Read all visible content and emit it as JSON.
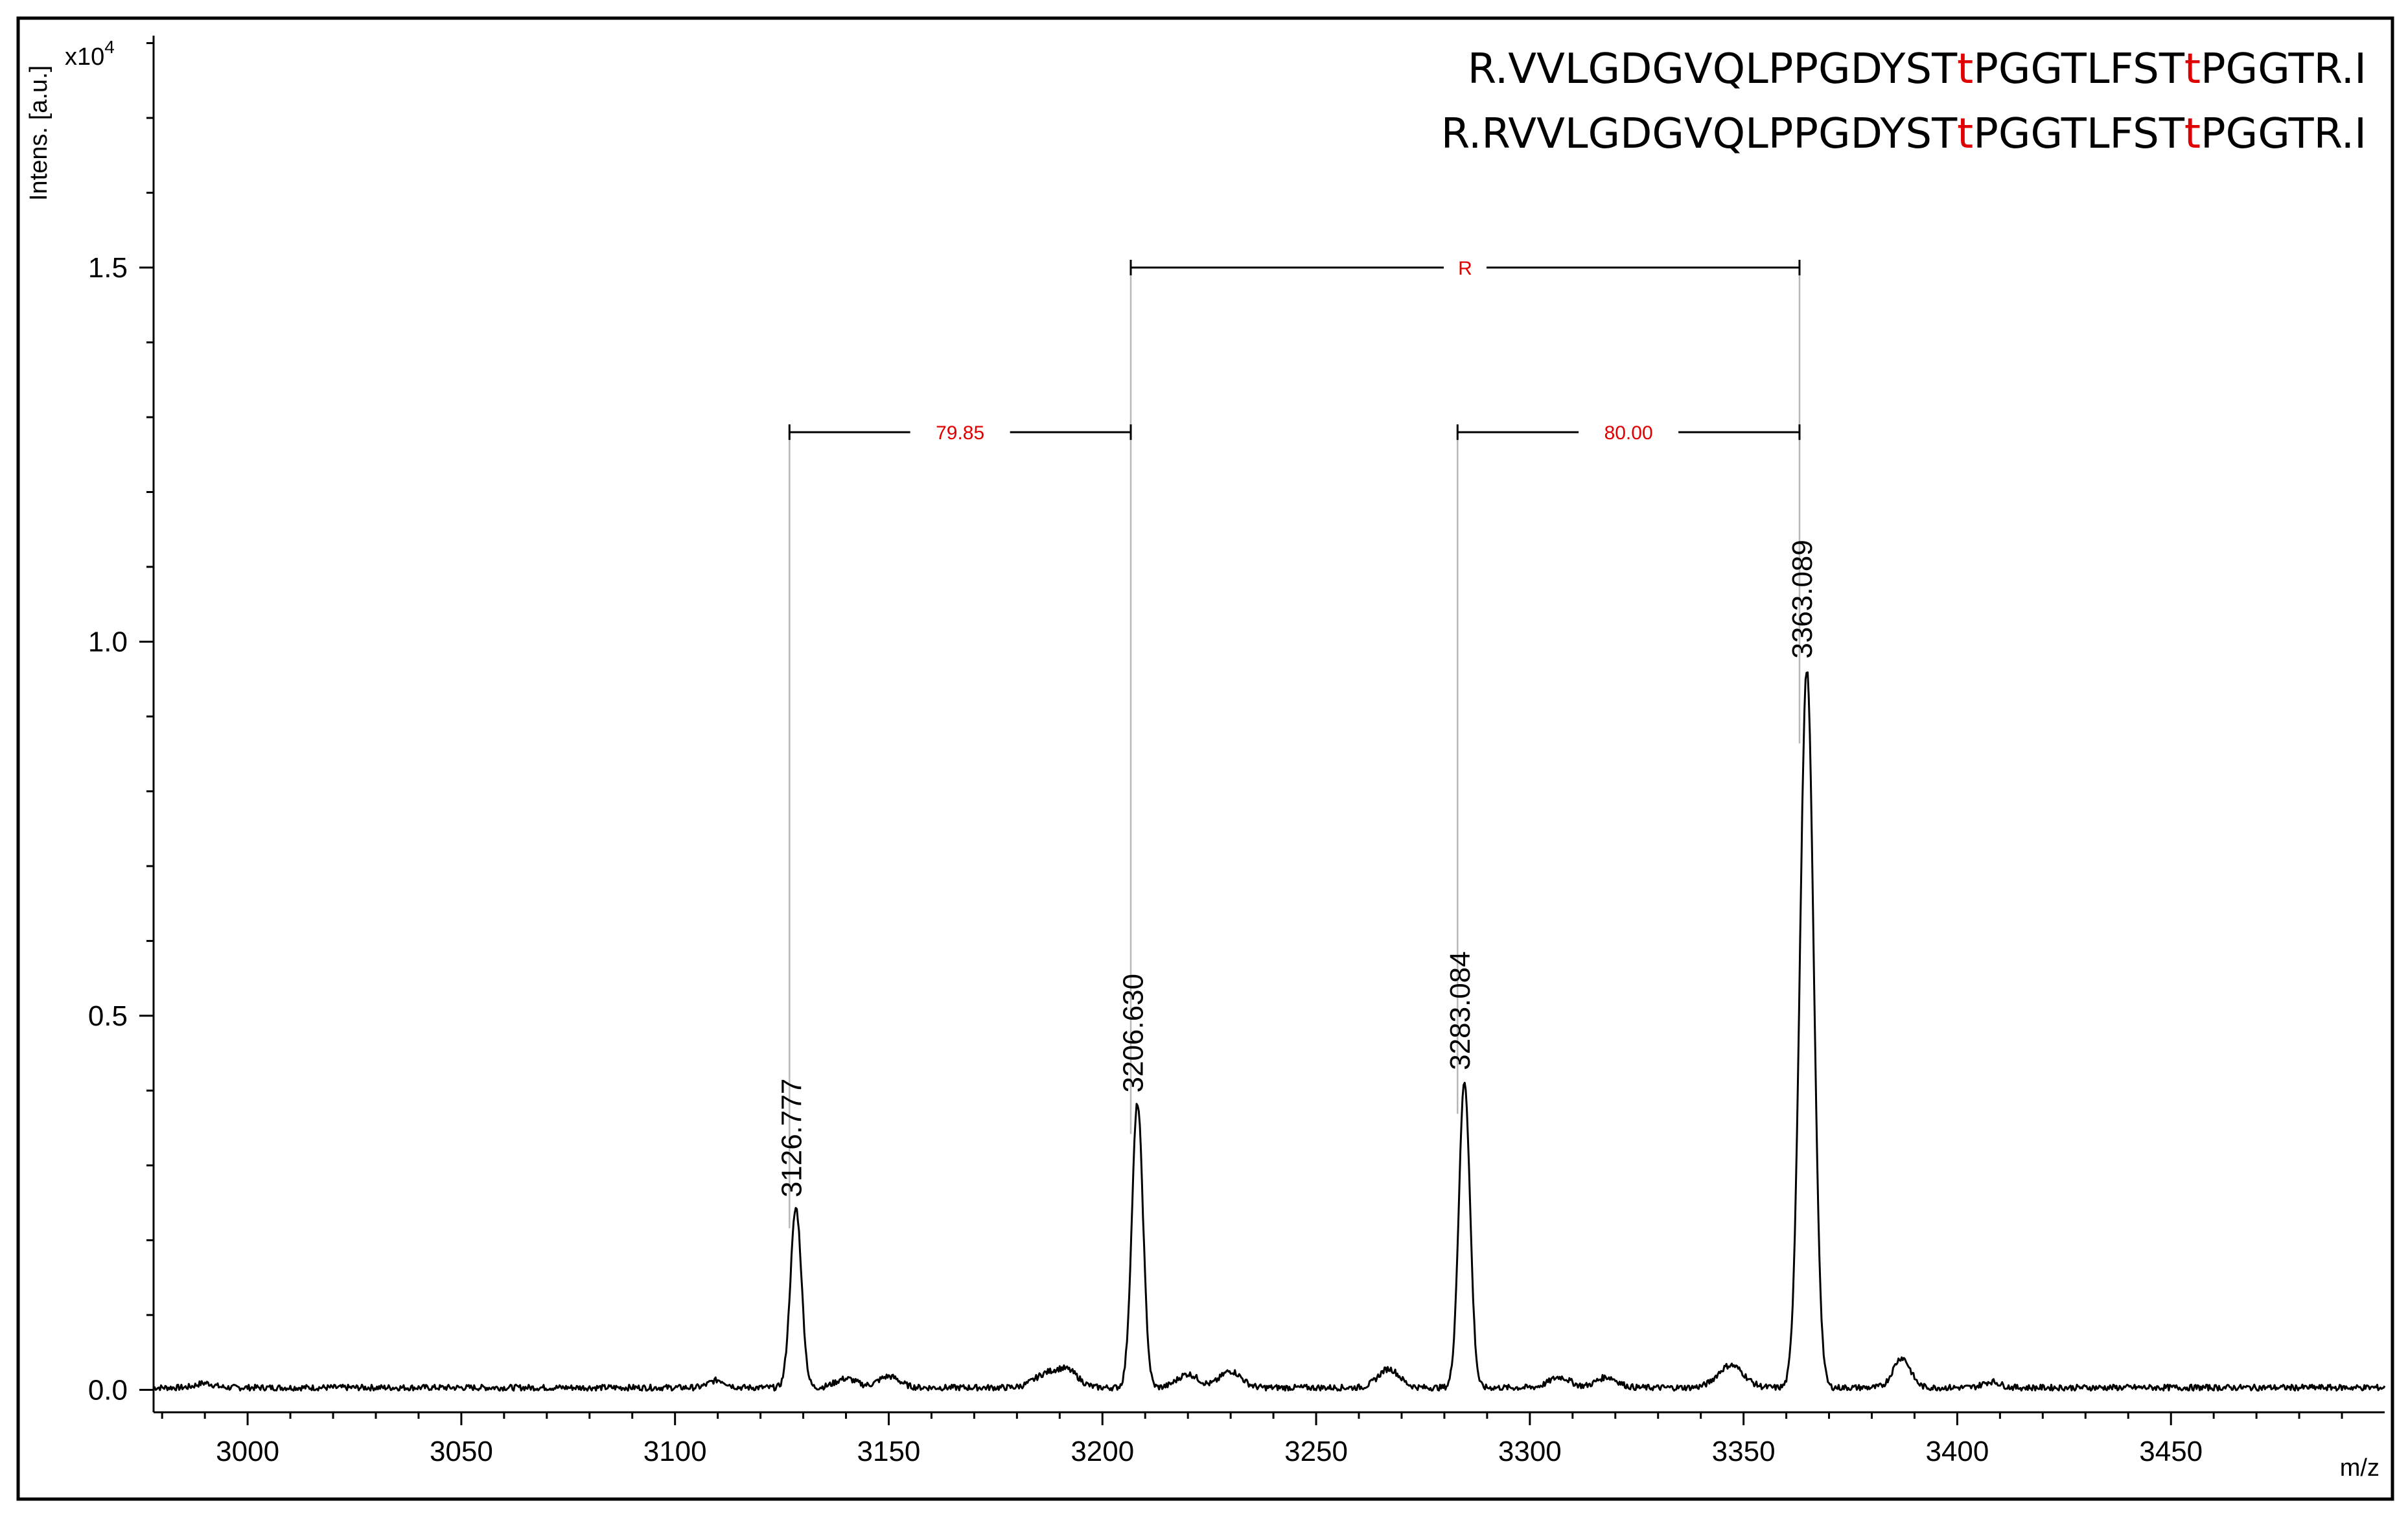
{
  "chart_data": {
    "type": "line",
    "xlabel": "m/z",
    "ylabel": "Intens. [a.u.]",
    "y_multiplier": "x10",
    "y_multiplier_exp": "4",
    "xlim": [
      2978,
      3500
    ],
    "ylim": [
      -0.03,
      1.81
    ],
    "x_ticks": [
      3000,
      3050,
      3100,
      3150,
      3200,
      3250,
      3300,
      3350,
      3400,
      3450
    ],
    "x_tick_labels": [
      "3000",
      "3050",
      "3100",
      "3150",
      "3200",
      "3250",
      "3300",
      "3350",
      "3400",
      "3450"
    ],
    "y_ticks": [
      0.0,
      0.5,
      1.0,
      1.5
    ],
    "y_tick_labels": [
      "0.0",
      "0.5",
      "1.0",
      "1.5"
    ],
    "grid": false,
    "baseline": 0.003,
    "peaks": [
      {
        "label": "3126.777",
        "mz": 3128.3,
        "intensity": 0.24,
        "width": 1.3
      },
      {
        "label": "3206.630",
        "mz": 3208.2,
        "intensity": 0.38,
        "width": 1.3
      },
      {
        "label": "3283.084",
        "mz": 3284.7,
        "intensity": 0.41,
        "width": 1.3
      },
      {
        "label": "3363.089",
        "mz": 3364.8,
        "intensity": 0.96,
        "width": 1.6
      }
    ],
    "minor_peaks": [
      {
        "mz": 2990,
        "intensity": 0.006,
        "width": 2
      },
      {
        "mz": 3110,
        "intensity": 0.01,
        "width": 2
      },
      {
        "mz": 3140,
        "intensity": 0.012,
        "width": 2.5
      },
      {
        "mz": 3150,
        "intensity": 0.015,
        "width": 2.5
      },
      {
        "mz": 3187,
        "intensity": 0.018,
        "width": 3
      },
      {
        "mz": 3192,
        "intensity": 0.02,
        "width": 2.5
      },
      {
        "mz": 3220,
        "intensity": 0.018,
        "width": 2.5
      },
      {
        "mz": 3230,
        "intensity": 0.022,
        "width": 2.5
      },
      {
        "mz": 3267,
        "intensity": 0.025,
        "width": 2.5
      },
      {
        "mz": 3307,
        "intensity": 0.014,
        "width": 2.5
      },
      {
        "mz": 3318,
        "intensity": 0.014,
        "width": 2.5
      },
      {
        "mz": 3347,
        "intensity": 0.03,
        "width": 3
      },
      {
        "mz": 3387,
        "intensity": 0.04,
        "width": 2
      },
      {
        "mz": 3408,
        "intensity": 0.008,
        "width": 2
      }
    ],
    "annotations": [
      {
        "label": "79.85",
        "from_mz": 3126.777,
        "to_mz": 3206.63,
        "y": 1.28
      },
      {
        "label": "80.00",
        "from_mz": 3283.084,
        "to_mz": 3363.089,
        "y": 1.28
      },
      {
        "label": "R",
        "from_mz": 3206.63,
        "to_mz": 3363.089,
        "y": 1.5
      }
    ],
    "sequences": [
      {
        "parts": [
          {
            "text": "R.VVLGDGVQLPPGDYST",
            "modified": false
          },
          {
            "text": "t",
            "modified": true
          },
          {
            "text": "PGGTLFST",
            "modified": false
          },
          {
            "text": "t",
            "modified": true
          },
          {
            "text": "PGGTR.I",
            "modified": false
          }
        ]
      },
      {
        "parts": [
          {
            "text": "R.RVVLGDGVQLPPGDYST",
            "modified": false
          },
          {
            "text": "t",
            "modified": true
          },
          {
            "text": "PGGTLFST",
            "modified": false
          },
          {
            "text": "t",
            "modified": true
          },
          {
            "text": "PGGTR.I",
            "modified": false
          }
        ]
      }
    ],
    "colors": {
      "line": "#000000",
      "annotation": "#e00000",
      "guide": "#b8b8b8"
    }
  }
}
